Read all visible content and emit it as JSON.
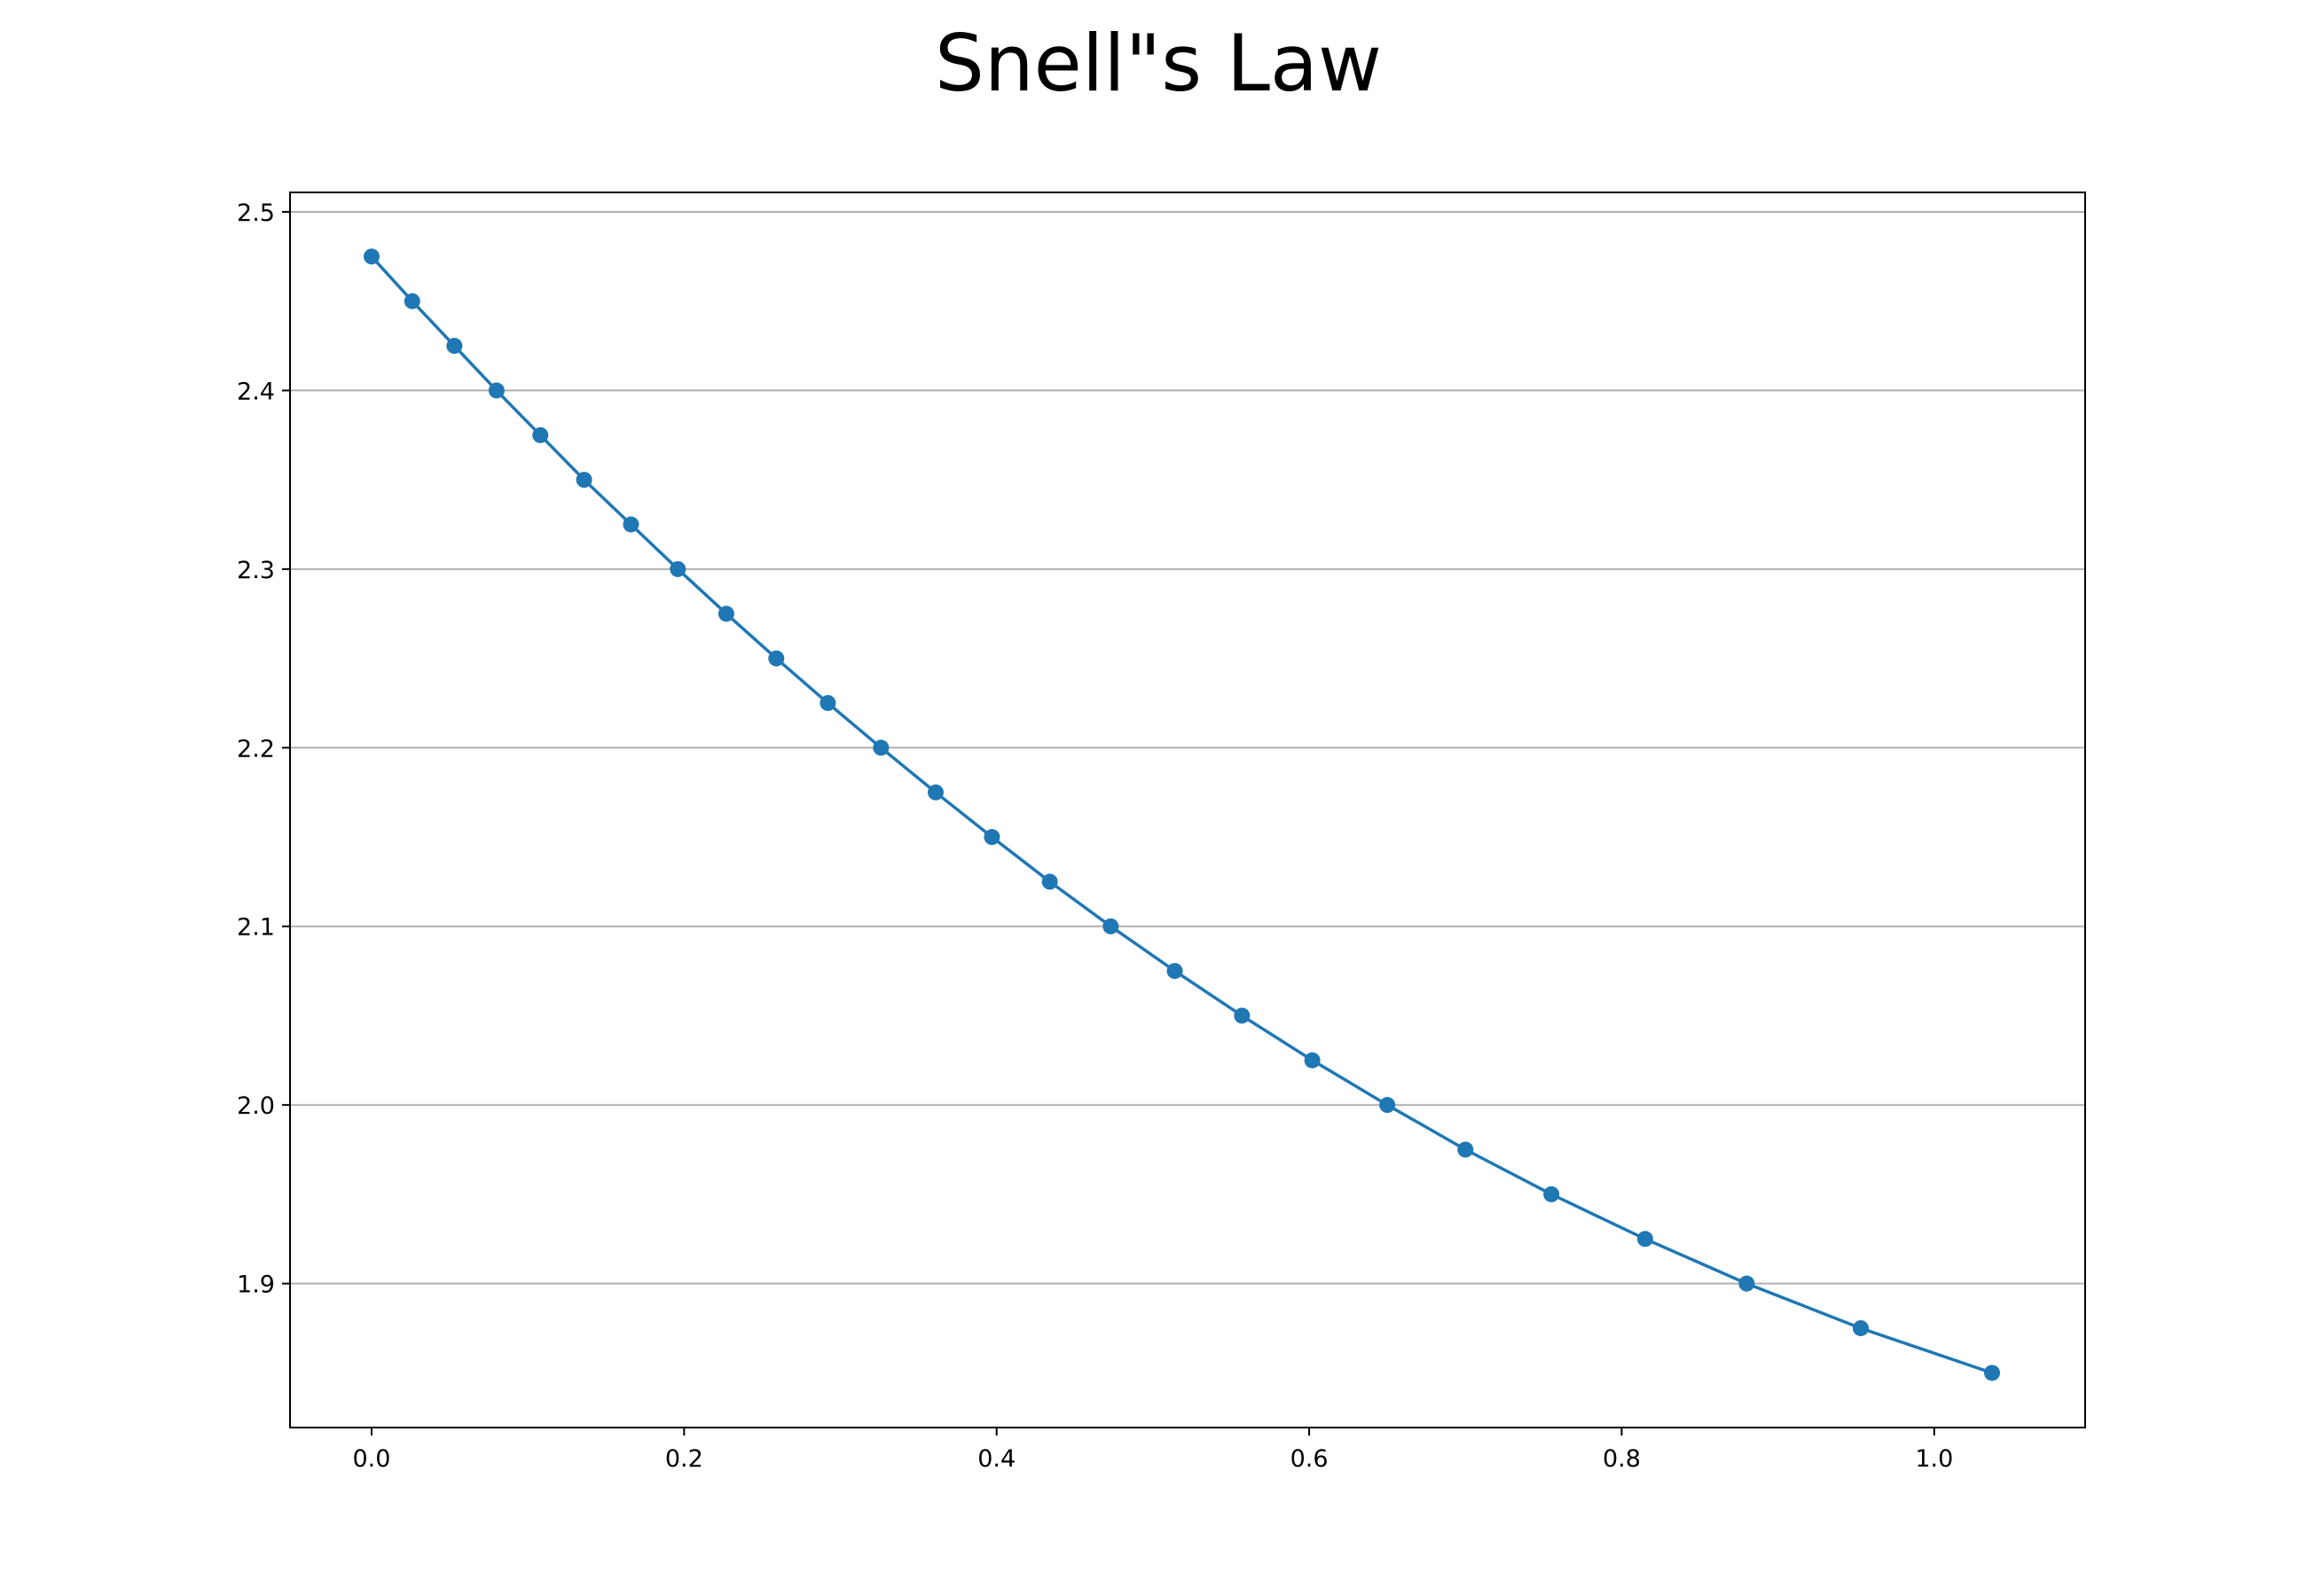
{
  "chart_data": {
    "type": "line",
    "title": "Snell\"s Law",
    "xlabel": "",
    "ylabel": "",
    "xlim": [
      -0.0522,
      1.0966
    ],
    "ylim": [
      1.8194,
      2.5109
    ],
    "x_ticks": [
      0.0,
      0.2,
      0.4,
      0.6,
      0.8,
      1.0
    ],
    "x_tick_labels": [
      "0.0",
      "0.2",
      "0.4",
      "0.6",
      "0.8",
      "1.0"
    ],
    "y_ticks": [
      1.9,
      2.0,
      2.1,
      2.2,
      2.3,
      2.4,
      2.5
    ],
    "y_tick_labels": [
      "1.9",
      "2.0",
      "2.1",
      "2.2",
      "2.3",
      "2.4",
      "2.5"
    ],
    "grid": "horizontal",
    "legend": "none",
    "colors": {
      "series": "#1f77b4",
      "grid": "#b0b0b0",
      "axes": "#000000"
    },
    "series": [
      {
        "marker": "circle",
        "x": [
          0.0,
          0.026,
          0.053,
          0.08,
          0.108,
          0.136,
          0.166,
          0.196,
          0.227,
          0.259,
          0.292,
          0.326,
          0.361,
          0.397,
          0.434,
          0.473,
          0.514,
          0.557,
          0.602,
          0.65,
          0.7,
          0.755,
          0.815,
          0.88,
          0.953,
          1.037
        ],
        "y": [
          2.475,
          2.45,
          2.425,
          2.4,
          2.375,
          2.35,
          2.325,
          2.3,
          2.275,
          2.25,
          2.225,
          2.2,
          2.175,
          2.15,
          2.125,
          2.1,
          2.075,
          2.05,
          2.025,
          2.0,
          1.975,
          1.95,
          1.925,
          1.9,
          1.875,
          1.85
        ]
      }
    ]
  }
}
